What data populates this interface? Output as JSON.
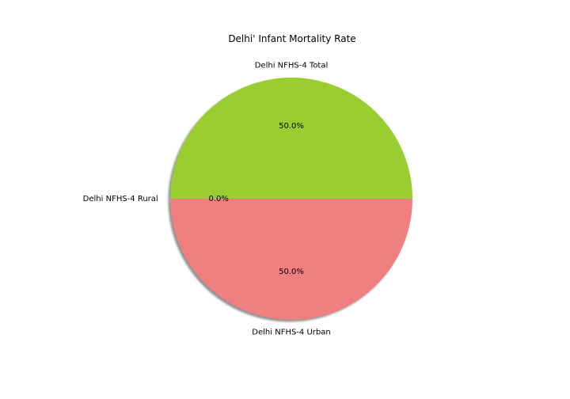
{
  "chart_data": {
    "type": "pie",
    "title": "Delhi' Infant Mortality Rate",
    "slices": [
      {
        "label": "Delhi NFHS-4 Total",
        "value": 50.0,
        "pct_label": "50.0%",
        "color": "#9acd32"
      },
      {
        "label": "Delhi NFHS-4 Rural",
        "value": 0.0,
        "pct_label": "0.0%",
        "color": "#87ceeb"
      },
      {
        "label": "Delhi NFHS-4 Urban",
        "value": 50.0,
        "pct_label": "50.0%",
        "color": "#f08080"
      }
    ],
    "start_angle_deg": 0,
    "counterclockwise": true,
    "shadow": true,
    "legend": "none"
  }
}
